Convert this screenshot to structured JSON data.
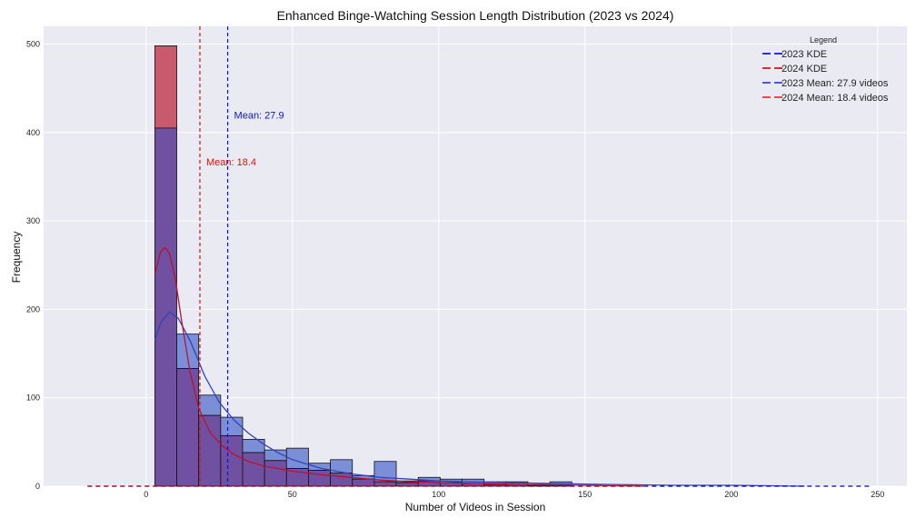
{
  "chart_data": {
    "type": "bar",
    "title": "Enhanced Binge-Watching Session Length Distribution (2023 vs 2024)",
    "xlabel": "Number of Videos in Session",
    "ylabel": "Frequency",
    "xlim": [
      -35,
      260
    ],
    "ylim": [
      0,
      520
    ],
    "xticks": [
      0,
      50,
      100,
      150,
      200,
      250
    ],
    "yticks": [
      0,
      100,
      200,
      300,
      400,
      500
    ],
    "grid": true,
    "legend_placement": "top-right",
    "legend_title": "Legend",
    "legend": [
      {
        "label": "2023 KDE",
        "color": "#0000cc",
        "style": "dashed"
      },
      {
        "label": "2024 KDE",
        "color": "#cc0000",
        "style": "dashed"
      },
      {
        "label": "2023 Mean: 27.9 videos",
        "color": "#2233dd",
        "style": "dashed"
      },
      {
        "label": "2024 Mean: 18.4 videos",
        "color": "#ee2222",
        "style": "dashed"
      }
    ],
    "bin_width": 7.5,
    "bin_starts": [
      3,
      10.5,
      18,
      25.5,
      33,
      40.5,
      48,
      55.5,
      63,
      70.5,
      78,
      85.5,
      93,
      100.5,
      108,
      115.5,
      123,
      130.5,
      138
    ],
    "series": [
      {
        "name": "2023",
        "color": "#7b8fd8",
        "values": [
          405,
          172,
          103,
          78,
          53,
          41,
          43,
          26,
          30,
          12,
          28,
          6,
          10,
          8,
          8,
          5,
          5,
          2,
          5
        ]
      },
      {
        "name": "2024",
        "color": "#c95a6e",
        "values": [
          498,
          133,
          80,
          57,
          38,
          29,
          20,
          18,
          15,
          8,
          5,
          4,
          6,
          4,
          3,
          2,
          2,
          1,
          1
        ]
      }
    ],
    "kde": [
      {
        "name": "2023 KDE",
        "color": "#3344bb",
        "points": [
          [
            3,
            165
          ],
          [
            5,
            185
          ],
          [
            8,
            197
          ],
          [
            11,
            190
          ],
          [
            15,
            165
          ],
          [
            20,
            125
          ],
          [
            25,
            95
          ],
          [
            30,
            75
          ],
          [
            35,
            60
          ],
          [
            40,
            48
          ],
          [
            45,
            38
          ],
          [
            50,
            30
          ],
          [
            60,
            20
          ],
          [
            70,
            14
          ],
          [
            80,
            10
          ],
          [
            90,
            8
          ],
          [
            100,
            6
          ],
          [
            110,
            5
          ],
          [
            125,
            4
          ],
          [
            140,
            3
          ],
          [
            160,
            2
          ],
          [
            180,
            1
          ],
          [
            200,
            1
          ],
          [
            225,
            0
          ]
        ]
      },
      {
        "name": "2024 KDE",
        "color": "#bb1133",
        "points": [
          [
            3,
            240
          ],
          [
            5,
            265
          ],
          [
            6.5,
            270
          ],
          [
            8,
            263
          ],
          [
            10,
            235
          ],
          [
            12,
            190
          ],
          [
            15,
            130
          ],
          [
            18,
            88
          ],
          [
            22,
            60
          ],
          [
            26,
            46
          ],
          [
            30,
            36
          ],
          [
            35,
            28
          ],
          [
            40,
            23
          ],
          [
            45,
            20
          ],
          [
            50,
            17
          ],
          [
            60,
            13
          ],
          [
            70,
            10
          ],
          [
            80,
            7
          ],
          [
            90,
            5
          ],
          [
            100,
            4
          ],
          [
            115,
            3
          ],
          [
            130,
            2
          ],
          [
            150,
            1
          ],
          [
            170,
            0
          ]
        ]
      }
    ],
    "kde_baseline": [
      {
        "color": "#0000cc",
        "x_range": [
          -20,
          248
        ]
      },
      {
        "color": "#cc0000",
        "x_range": [
          -20,
          170
        ]
      }
    ],
    "means": [
      {
        "value": 27.9,
        "label": "Mean: 27.9",
        "color": "#1111dd",
        "label_y": 420
      },
      {
        "value": 18.4,
        "label": "Mean: 18.4",
        "color": "#dd1111",
        "label_y": 367
      }
    ],
    "overlap_color": "#7050a0"
  }
}
